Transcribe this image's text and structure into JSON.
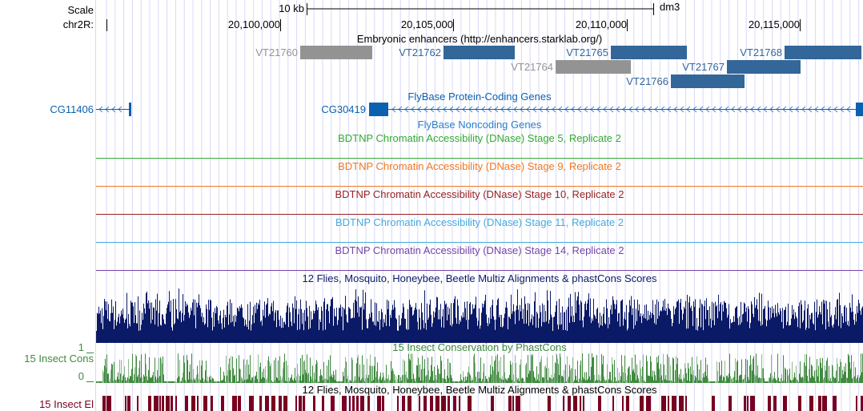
{
  "header": {
    "scale_label": "Scale",
    "scale_bar_label": "10 kb",
    "assembly": "dm3",
    "chrom_label": "chr2R:",
    "ticks": [
      "20,100,000",
      "20,105,000",
      "20,110,000",
      "20,115,000"
    ]
  },
  "tracks": {
    "enhancers": {
      "title": "Embryonic enhancers (http://enhancers.starklab.org/)",
      "items": [
        {
          "name": "VT21760",
          "color": "#939393"
        },
        {
          "name": "VT21762",
          "color": "#336699"
        },
        {
          "name": "VT21765",
          "color": "#336699"
        },
        {
          "name": "VT21768",
          "color": "#336699"
        },
        {
          "name": "VT21764",
          "color": "#939393"
        },
        {
          "name": "VT21767",
          "color": "#336699"
        },
        {
          "name": "VT21766",
          "color": "#336699"
        }
      ]
    },
    "coding_genes": {
      "title": "FlyBase Protein-Coding Genes",
      "genes": [
        "CG11406",
        "CG30419"
      ],
      "color": "#0b60b0"
    },
    "noncoding_genes": {
      "title": "FlyBase Noncoding Genes",
      "color": "#2a80d0"
    },
    "dnase": [
      {
        "title": "BDTNP Chromatin Accessibility (DNase) Stage 5, Replicate 2",
        "color": "#33aa33"
      },
      {
        "title": "BDTNP Chromatin Accessibility (DNase) Stage 9, Replicate 2",
        "color": "#f07820"
      },
      {
        "title": "BDTNP Chromatin Accessibility (DNase) Stage 10, Replicate 2",
        "color": "#992222"
      },
      {
        "title": "BDTNP Chromatin Accessibility (DNase) Stage 11, Replicate 2",
        "color": "#44aadd"
      },
      {
        "title": "BDTNP Chromatin Accessibility (DNase) Stage 14, Replicate 2",
        "color": "#7744aa"
      }
    ],
    "multiz": {
      "title": "12 Flies, Mosquito, Honeybee, Beetle Multiz Alignments & phastCons Scores",
      "color": "#0b1a66"
    },
    "cons": {
      "title": "15 Insect Conservation by PhastCons",
      "side_label": "15 Insect Cons",
      "ymax": "1",
      "ymin": "0",
      "color": "#3f8a3f"
    },
    "multiz2": {
      "title": "12 Flies, Mosquito, Honeybee, Beetle Multiz Alignments & phastCons Scores"
    },
    "elements": {
      "side_label": "15 Insect El",
      "color": "#770022"
    }
  }
}
